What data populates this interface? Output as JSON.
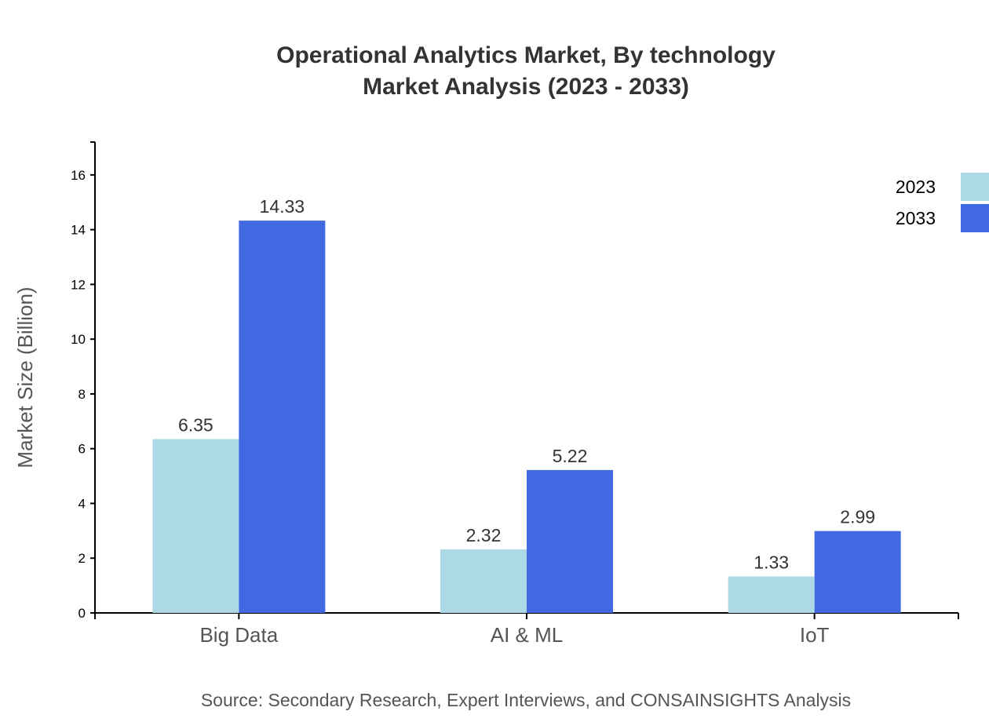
{
  "chart_data": {
    "type": "bar",
    "title": "Operational Analytics Market, By technology",
    "subtitle": "Market Analysis (2023 - 2033)",
    "xlabel": "",
    "ylabel": "Market Size (Billion)",
    "categories": [
      "Big Data",
      "AI & ML",
      "IoT"
    ],
    "series": [
      {
        "name": "2023",
        "values": [
          6.35,
          2.32,
          1.33
        ],
        "color": "#add8e6"
      },
      {
        "name": "2033",
        "values": [
          14.33,
          5.22,
          2.99
        ],
        "color": "#4169e1"
      }
    ],
    "ylim": [
      0,
      17.2
    ],
    "yticks": [
      0,
      2,
      4,
      6,
      8,
      10,
      12,
      14,
      16
    ],
    "grid": false,
    "legend_placement": "top-right",
    "source": "Source: Secondary Research, Expert Interviews, and CONSAINSIGHTS Analysis"
  }
}
